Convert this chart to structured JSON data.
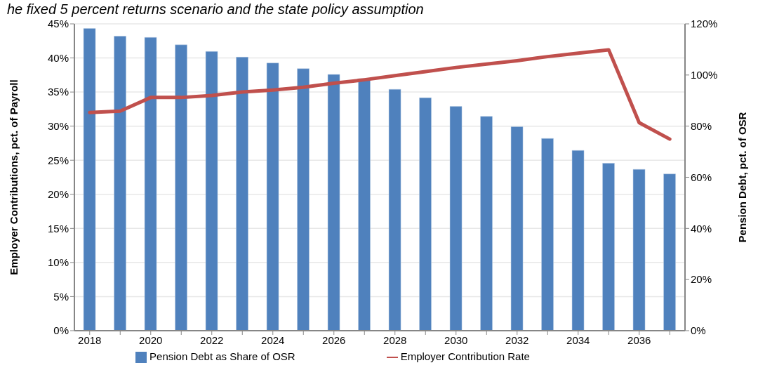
{
  "chart_data": {
    "type": "bar",
    "title": "he fixed 5 percent returns scenario and the state policy assumption",
    "ylabel": "Employer Contributions, pct. of Payroll",
    "y2label": "Pension Debt, pct. of OSR",
    "categories": [
      "2018",
      null,
      "2020",
      null,
      "2022",
      null,
      "2024",
      null,
      "2026",
      null,
      "2028",
      null,
      "2030",
      null,
      "2032",
      null,
      "2034",
      null,
      "2036",
      null
    ],
    "series": [
      {
        "name": "Pension Debt as Share of OSR",
        "axis": "y2",
        "color": "#4f81bd",
        "values": [
          118.2,
          115.2,
          114.7,
          111.8,
          109.2,
          107.0,
          104.7,
          102.5,
          100.2,
          98.6,
          94.4,
          91.1,
          87.7,
          83.8,
          79.8,
          75.2,
          70.5,
          65.5,
          63.1,
          61.3
        ]
      },
      {
        "name": "Employer Contribution Rate",
        "type": "line",
        "color": "#c0504d",
        "values": [
          32.0,
          32.2,
          34.2,
          34.2,
          34.5,
          35.0,
          35.3,
          35.7,
          36.3,
          36.8,
          37.4,
          38.0,
          38.6,
          39.1,
          39.6,
          40.2,
          40.7,
          41.2,
          30.5,
          28.1
        ]
      }
    ],
    "ylim": [
      0,
      45
    ],
    "yticks": [
      {
        "value": 0,
        "label": "0%"
      },
      {
        "value": 5,
        "label": "5%"
      },
      {
        "value": 10,
        "label": "10%"
      },
      {
        "value": 15,
        "label": "15%"
      },
      {
        "value": 20,
        "label": "20%"
      },
      {
        "value": 25,
        "label": "25%"
      },
      {
        "value": 30,
        "label": "30%"
      },
      {
        "value": 35,
        "label": "35%"
      },
      {
        "value": 40,
        "label": "40%"
      },
      {
        "value": 45,
        "label": "45%"
      }
    ],
    "y2lim": [
      0,
      120
    ],
    "y2ticks": [
      {
        "value": 0,
        "label": "0%"
      },
      {
        "value": 20,
        "label": "20%"
      },
      {
        "value": 40,
        "label": "40%"
      },
      {
        "value": 60,
        "label": "60%"
      },
      {
        "value": 80,
        "label": "80%"
      },
      {
        "value": 100,
        "label": "100%"
      },
      {
        "value": 120,
        "label": "120%"
      }
    ],
    "grid": "y",
    "legend": "bottom",
    "marker": "none",
    "line_style": "solid"
  }
}
